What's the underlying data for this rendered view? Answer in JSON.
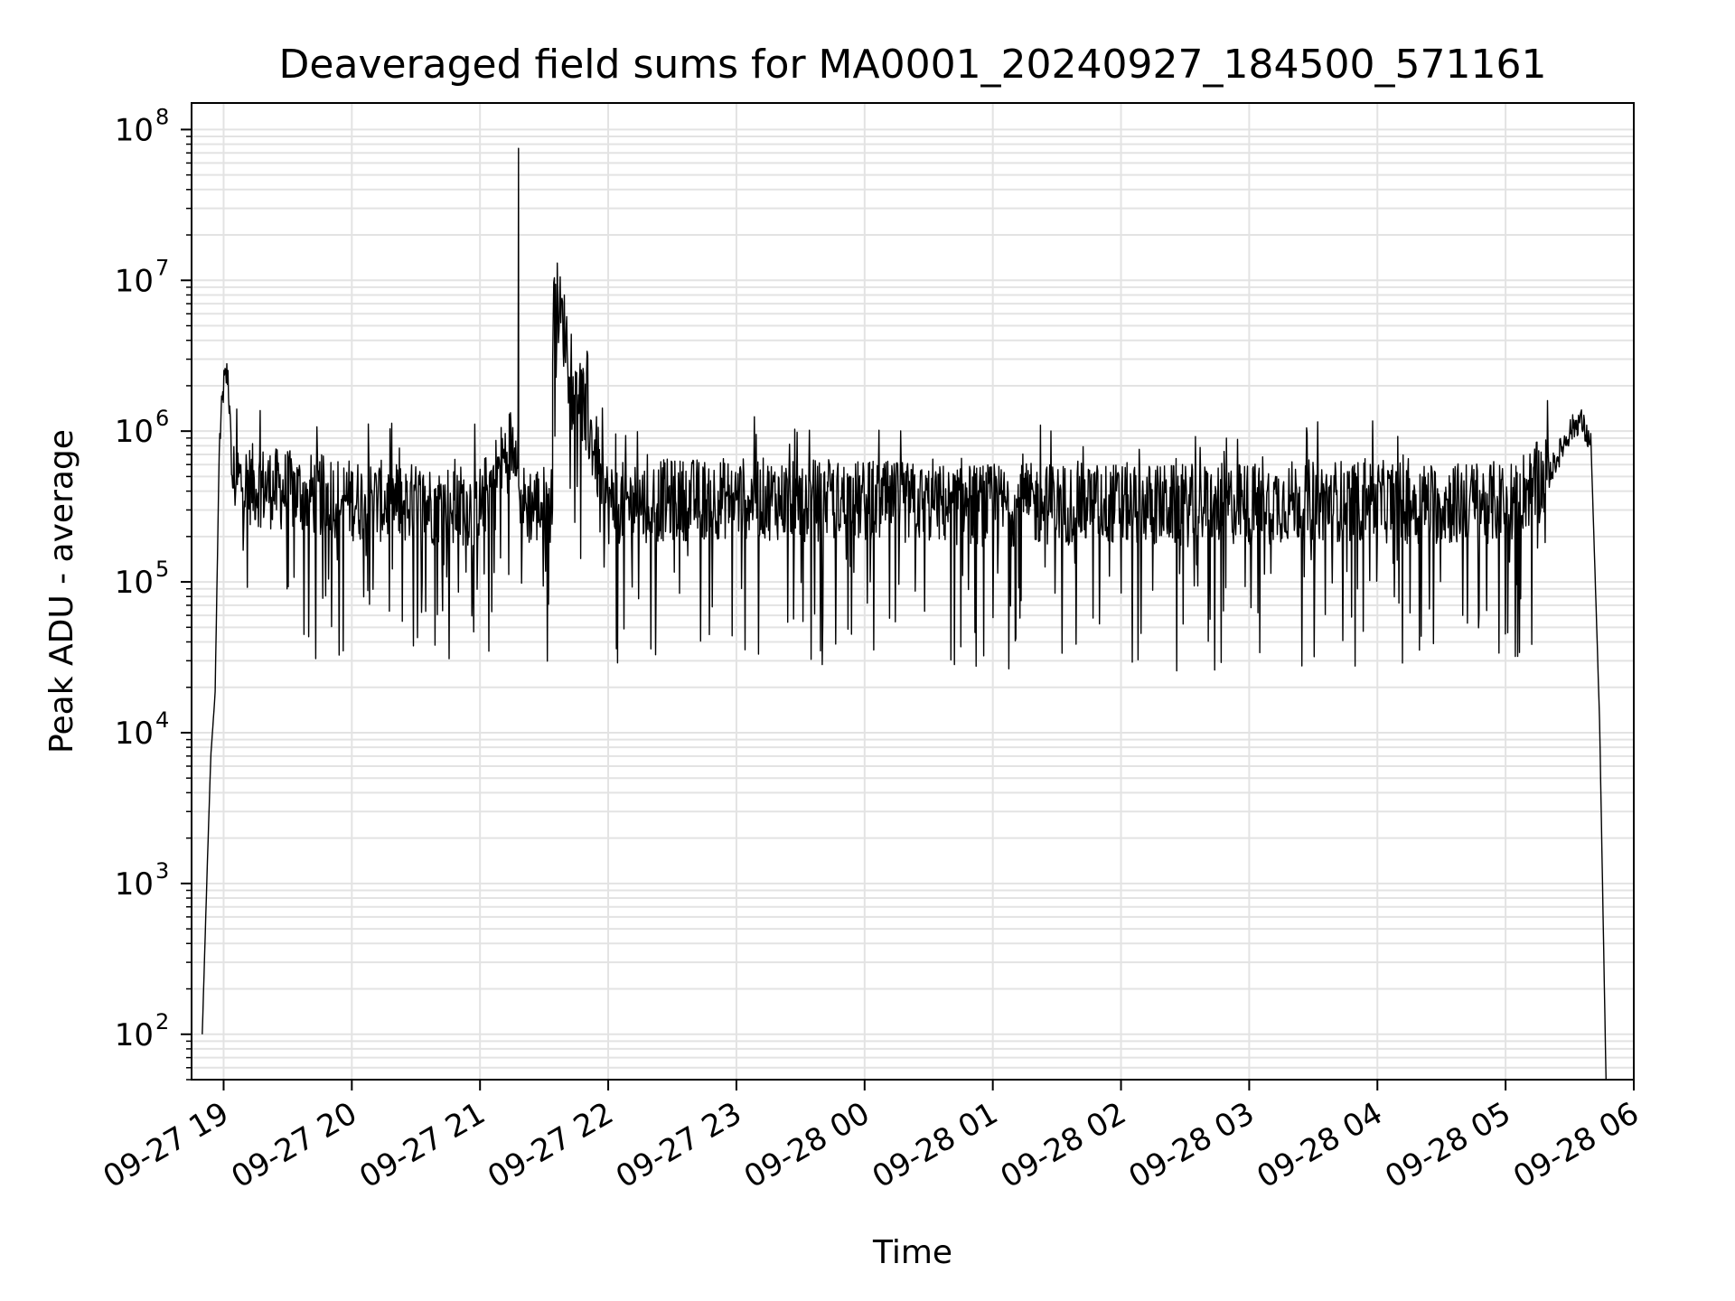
{
  "chart_data": {
    "type": "line",
    "title": "Deaveraged field sums for MA0001_20240927_184500_571161",
    "xlabel": "Time",
    "ylabel": "Peak ADU - average",
    "yscale": "log",
    "ylim": [
      50,
      150000000
    ],
    "xlim": [
      "2024-09-27 18:45",
      "2024-09-28 06:00"
    ],
    "grid": true,
    "legend": "none",
    "x_tick_labels": [
      "09-27 19",
      "09-27 20",
      "09-27 21",
      "09-27 22",
      "09-27 23",
      "09-28 00",
      "09-28 01",
      "09-28 02",
      "09-28 03",
      "09-28 04",
      "09-28 05",
      "09-28 06"
    ],
    "x_tick_times": [
      "2024-09-27 19:00",
      "2024-09-27 20:00",
      "2024-09-27 21:00",
      "2024-09-27 22:00",
      "2024-09-27 23:00",
      "2024-09-28 00:00",
      "2024-09-28 01:00",
      "2024-09-28 02:00",
      "2024-09-28 03:00",
      "2024-09-28 04:00",
      "2024-09-28 05:00",
      "2024-09-28 06:00"
    ],
    "y_tick_labels": [
      {
        "base": "10",
        "exp": "2",
        "value": 100
      },
      {
        "base": "10",
        "exp": "3",
        "value": 1000
      },
      {
        "base": "10",
        "exp": "4",
        "value": 10000
      },
      {
        "base": "10",
        "exp": "5",
        "value": 100000
      },
      {
        "base": "10",
        "exp": "6",
        "value": 1000000
      },
      {
        "base": "10",
        "exp": "7",
        "value": 10000000
      },
      {
        "base": "10",
        "exp": "8",
        "value": 100000000
      }
    ],
    "series": [
      {
        "color": "#000000",
        "x": [
          "2024-09-27 18:50",
          "2024-09-27 18:52",
          "2024-09-27 18:54",
          "2024-09-27 18:56",
          "2024-09-27 18:58",
          "2024-09-27 19:00",
          "2024-09-27 19:02",
          "2024-09-27 19:04",
          "2024-09-27 19:10",
          "2024-09-27 19:30",
          "2024-09-27 20:00",
          "2024-09-27 20:30",
          "2024-09-27 21:00",
          "2024-09-27 21:18",
          "2024-09-27 21:34",
          "2024-09-27 22:00",
          "2024-09-27 22:30",
          "2024-09-27 23:00",
          "2024-09-27 23:30",
          "2024-09-28 00:00",
          "2024-09-28 00:30",
          "2024-09-28 01:00",
          "2024-09-28 01:30",
          "2024-09-28 02:00",
          "2024-09-28 02:30",
          "2024-09-28 03:00",
          "2024-09-28 03:30",
          "2024-09-28 04:00",
          "2024-09-28 04:30",
          "2024-09-28 05:00",
          "2024-09-28 05:20",
          "2024-09-28 05:30",
          "2024-09-28 05:35",
          "2024-09-28 05:40",
          "2024-09-28 05:44",
          "2024-09-28 05:47"
        ],
        "y": [
          100,
          900,
          7000,
          18000,
          800000,
          2000000,
          2500000,
          500000,
          450000,
          400000,
          350000,
          330000,
          320000,
          75000000,
          2800000,
          330000,
          350000,
          360000,
          350000,
          340000,
          330000,
          320000,
          330000,
          330000,
          320000,
          330000,
          350000,
          340000,
          330000,
          340000,
          500000,
          1000000,
          1200000,
          800000,
          12000,
          50
        ]
      }
    ]
  }
}
